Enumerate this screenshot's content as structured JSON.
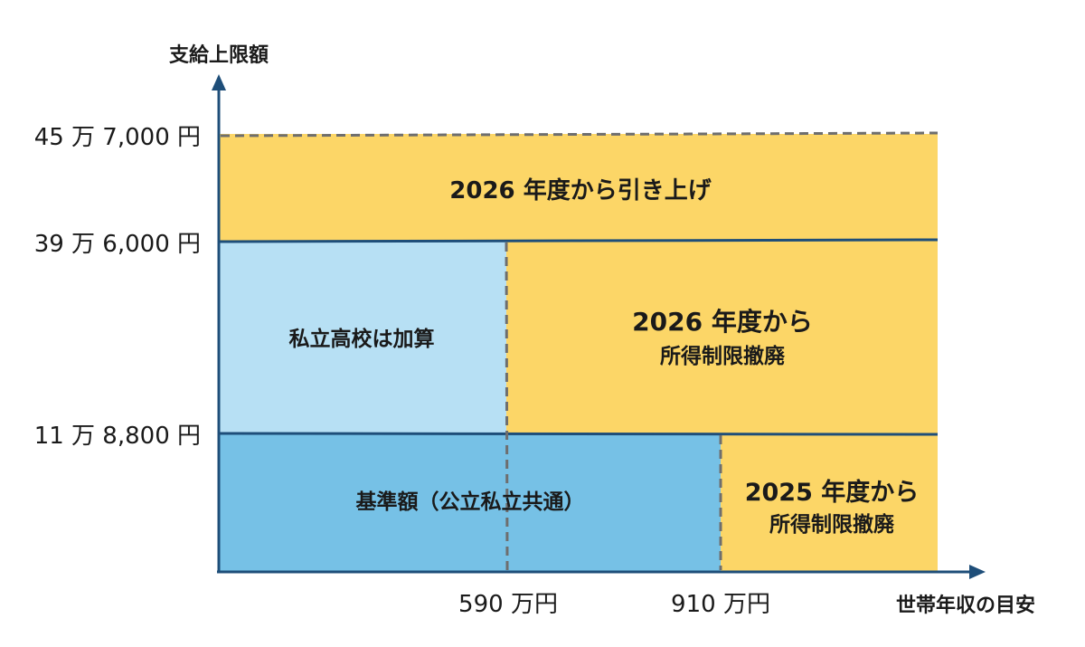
{
  "y_axis": {
    "title": "支給上限額",
    "ticks": [
      "45 万 7,000 円",
      "39 万 6,000 円",
      "11 万 8,800 円"
    ]
  },
  "x_axis": {
    "title": "世帯年収の目安",
    "ticks": [
      "590 万円",
      "910 万円"
    ]
  },
  "regions": {
    "raise_2026": {
      "line1": "2026 年度から引き上げ"
    },
    "private_add": {
      "line1": "私立高校は加算"
    },
    "abolish_2026": {
      "line1": "2026 年度から",
      "line2": "所得制限撤廃"
    },
    "base_amount": {
      "line1": "基準額（公立私立共通）"
    },
    "abolish_2025": {
      "line1": "2025 年度から",
      "line2": "所得制限撤廃"
    }
  },
  "colors": {
    "yellow": "#FCD667",
    "light_blue": "#B7E0F4",
    "mid_blue": "#76C1E6",
    "axis": "#1E4E79",
    "dashed": "#6E6E6E"
  }
}
